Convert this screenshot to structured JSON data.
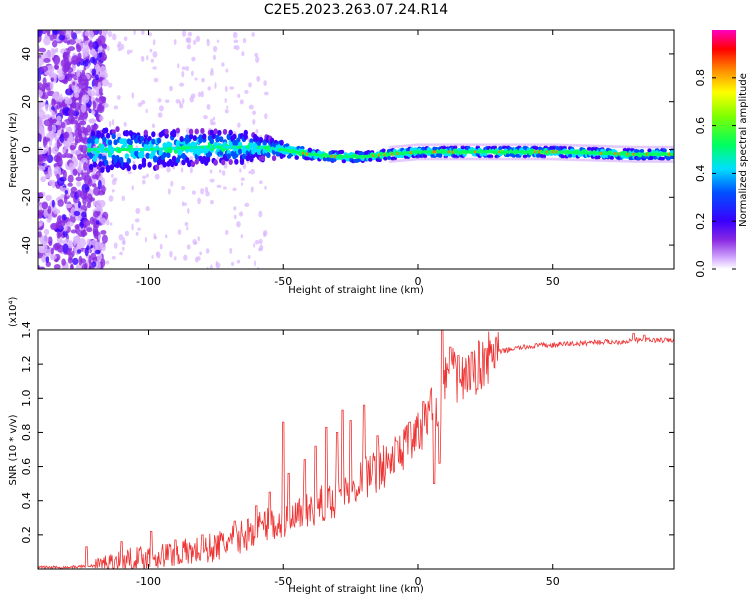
{
  "figure": {
    "title": "C2E5.2023.263.07.24.R14"
  },
  "chart_data": [
    {
      "type": "heatmap",
      "xlabel": "Height of straight line (km)",
      "ylabel": "Frequency (Hz)",
      "xlim": [
        -141,
        95
      ],
      "ylim": [
        -50,
        50
      ],
      "xticks": [
        -100,
        -50,
        0,
        50
      ],
      "yticks": [
        -40,
        -20,
        0,
        20,
        40
      ],
      "colorbar": {
        "label": "Normalized spectral amplitude",
        "range": [
          0,
          1
        ],
        "ticks": [
          "0.0",
          "0.2",
          "0.4",
          "0.6",
          "0.8"
        ],
        "colormap": "rainbow: white -> violet -> blue -> cyan -> green -> yellow -> red -> magenta"
      },
      "ridge_center_hz": [
        {
          "x": -120,
          "y": 0
        },
        {
          "x": -100,
          "y": 0
        },
        {
          "x": -80,
          "y": 1
        },
        {
          "x": -60,
          "y": 1
        },
        {
          "x": -50,
          "y": 0
        },
        {
          "x": -40,
          "y": -2
        },
        {
          "x": -30,
          "y": -3
        },
        {
          "x": -20,
          "y": -3
        },
        {
          "x": -10,
          "y": -2
        },
        {
          "x": 0,
          "y": -1
        },
        {
          "x": 20,
          "y": -1
        },
        {
          "x": 50,
          "y": -1
        },
        {
          "x": 80,
          "y": -2
        },
        {
          "x": 95,
          "y": -2
        }
      ],
      "ridge_halfwidth_hz": [
        {
          "x": -120,
          "y": 9
        },
        {
          "x": -100,
          "y": 8
        },
        {
          "x": -80,
          "y": 7
        },
        {
          "x": -60,
          "y": 6
        },
        {
          "x": -50,
          "y": 3
        },
        {
          "x": -40,
          "y": 2
        },
        {
          "x": -10,
          "y": 2
        },
        {
          "x": 95,
          "y": 2
        }
      ]
    },
    {
      "type": "line",
      "xlabel": "Height of straight line (km)",
      "ylabel": "SNR (10 * v/v)",
      "scale_label": "(x10⁴)",
      "y_multiplier": 10000,
      "xlim": [
        -141,
        95
      ],
      "ylim": [
        0,
        1.4
      ],
      "xticks": [
        -100,
        -50,
        0,
        50
      ],
      "yticks": [
        "0.2",
        "0.4",
        "0.6",
        "0.8",
        "1.0",
        "1.2",
        "1.4"
      ],
      "color": "#ee3333",
      "series": [
        {
          "x": [
            -141,
            -130,
            -120,
            -115,
            -110,
            -105,
            -100,
            -95,
            -90,
            -85,
            -80,
            -75,
            -70,
            -65,
            -60,
            -55,
            -50,
            -45,
            -40,
            -35,
            -30,
            -25,
            -20,
            -15,
            -10,
            -5,
            0,
            3,
            5,
            8,
            10,
            12,
            15,
            18,
            20,
            22,
            25,
            28,
            30,
            35,
            40,
            45,
            50,
            55,
            60,
            65,
            70,
            75,
            80,
            85,
            90,
            95
          ],
          "y": [
            0.01,
            0.01,
            0.02,
            0.03,
            0.05,
            0.06,
            0.07,
            0.08,
            0.09,
            0.1,
            0.11,
            0.13,
            0.16,
            0.19,
            0.24,
            0.27,
            0.25,
            0.3,
            0.34,
            0.38,
            0.42,
            0.48,
            0.53,
            0.58,
            0.63,
            0.72,
            0.78,
            0.86,
            1.02,
            0.8,
            1.1,
            1.2,
            1.05,
            1.16,
            1.12,
            1.18,
            1.22,
            1.26,
            1.27,
            1.29,
            1.3,
            1.31,
            1.31,
            1.32,
            1.32,
            1.33,
            1.33,
            1.33,
            1.34,
            1.34,
            1.34,
            1.34
          ]
        }
      ],
      "spikes": [
        {
          "x": -123,
          "y": 0.13
        },
        {
          "x": -110,
          "y": 0.16
        },
        {
          "x": -99,
          "y": 0.22
        },
        {
          "x": -90,
          "y": 0.17
        },
        {
          "x": -80,
          "y": 0.2
        },
        {
          "x": -68,
          "y": 0.28
        },
        {
          "x": -60,
          "y": 0.37
        },
        {
          "x": -55,
          "y": 0.45
        },
        {
          "x": -50,
          "y": 0.86
        },
        {
          "x": -48,
          "y": 0.56
        },
        {
          "x": -42,
          "y": 0.64
        },
        {
          "x": -38,
          "y": 0.72
        },
        {
          "x": -34,
          "y": 0.83
        },
        {
          "x": -30,
          "y": 0.8
        },
        {
          "x": -28,
          "y": 0.93
        },
        {
          "x": -25,
          "y": 0.87
        },
        {
          "x": -20,
          "y": 0.96
        },
        {
          "x": -15,
          "y": 0.78
        },
        {
          "x": -8,
          "y": 0.75
        },
        {
          "x": -3,
          "y": 0.86
        },
        {
          "x": 2,
          "y": 0.98
        },
        {
          "x": 6,
          "y": 1.18
        },
        {
          "x": 9,
          "y": 1.43
        },
        {
          "x": 12,
          "y": 1.3
        },
        {
          "x": 15,
          "y": 1.25
        },
        {
          "x": 20,
          "y": 1.27
        },
        {
          "x": 25,
          "y": 1.29
        },
        {
          "x": 80,
          "y": 1.38
        },
        {
          "x": 84,
          "y": 1.37
        }
      ],
      "dips": [
        {
          "x": 6,
          "y": 0.5
        },
        {
          "x": 8,
          "y": 0.62
        }
      ]
    }
  ]
}
